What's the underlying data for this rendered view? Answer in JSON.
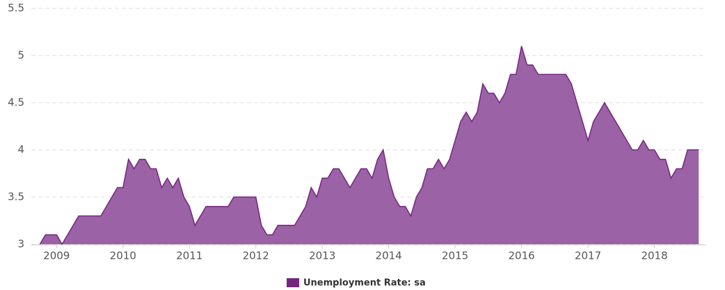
{
  "chart_data": {
    "type": "area",
    "x": [
      2008.75,
      2008.833,
      2008.917,
      2009,
      2009.083,
      2009.167,
      2009.25,
      2009.333,
      2009.417,
      2009.5,
      2009.583,
      2009.667,
      2009.75,
      2009.833,
      2009.917,
      2010,
      2010.083,
      2010.167,
      2010.25,
      2010.333,
      2010.417,
      2010.5,
      2010.583,
      2010.667,
      2010.75,
      2010.833,
      2010.917,
      2011,
      2011.083,
      2011.167,
      2011.25,
      2011.333,
      2011.417,
      2011.5,
      2011.583,
      2011.667,
      2011.75,
      2011.833,
      2011.917,
      2012,
      2012.083,
      2012.167,
      2012.25,
      2012.333,
      2012.417,
      2012.5,
      2012.583,
      2012.667,
      2012.75,
      2012.833,
      2012.917,
      2013,
      2013.083,
      2013.167,
      2013.25,
      2013.333,
      2013.417,
      2013.5,
      2013.583,
      2013.667,
      2013.75,
      2013.833,
      2013.917,
      2014,
      2014.083,
      2014.167,
      2014.25,
      2014.333,
      2014.417,
      2014.5,
      2014.583,
      2014.667,
      2014.75,
      2014.833,
      2014.917,
      2015,
      2015.083,
      2015.167,
      2015.25,
      2015.333,
      2015.417,
      2015.5,
      2015.583,
      2015.667,
      2015.75,
      2015.833,
      2015.917,
      2016,
      2016.083,
      2016.167,
      2016.25,
      2016.333,
      2016.417,
      2016.5,
      2016.583,
      2016.667,
      2016.75,
      2016.833,
      2016.917,
      2017,
      2017.083,
      2017.167,
      2017.25,
      2017.333,
      2017.417,
      2017.5,
      2017.583,
      2017.667,
      2017.75,
      2017.833,
      2017.917,
      2018,
      2018.083,
      2018.167,
      2018.25,
      2018.333,
      2018.417,
      2018.5,
      2018.583,
      2018.667
    ],
    "series": [
      {
        "name": "Unemployment Rate: sa",
        "color": "#9b62a6",
        "line_color": "#74267e",
        "values": [
          3.0,
          3.1,
          3.1,
          3.1,
          3.0,
          3.1,
          3.2,
          3.3,
          3.3,
          3.3,
          3.3,
          3.3,
          3.4,
          3.5,
          3.6,
          3.6,
          3.9,
          3.8,
          3.9,
          3.9,
          3.8,
          3.8,
          3.6,
          3.7,
          3.6,
          3.7,
          3.5,
          3.4,
          3.2,
          3.3,
          3.4,
          3.4,
          3.4,
          3.4,
          3.4,
          3.5,
          3.5,
          3.5,
          3.5,
          3.5,
          3.2,
          3.1,
          3.1,
          3.2,
          3.2,
          3.2,
          3.2,
          3.3,
          3.4,
          3.6,
          3.5,
          3.7,
          3.7,
          3.8,
          3.8,
          3.7,
          3.6,
          3.7,
          3.8,
          3.8,
          3.7,
          3.9,
          4.0,
          3.7,
          3.5,
          3.4,
          3.4,
          3.3,
          3.5,
          3.6,
          3.8,
          3.8,
          3.9,
          3.8,
          3.9,
          4.1,
          4.3,
          4.4,
          4.3,
          4.4,
          4.7,
          4.6,
          4.6,
          4.5,
          4.6,
          4.8,
          4.8,
          5.1,
          4.9,
          4.9,
          4.8,
          4.8,
          4.8,
          4.8,
          4.8,
          4.8,
          4.7,
          4.5,
          4.3,
          4.1,
          4.3,
          4.4,
          4.5,
          4.4,
          4.3,
          4.2,
          4.1,
          4.0,
          4.0,
          4.1,
          4.0,
          4.0,
          3.9,
          3.9,
          3.7,
          3.8,
          3.8,
          4.0,
          4.0,
          4.0
        ]
      }
    ],
    "xlim": [
      2008.62,
      2018.78
    ],
    "xticks": [
      2009,
      2010,
      2011,
      2012,
      2013,
      2014,
      2015,
      2016,
      2017,
      2018
    ],
    "ylim": [
      3,
      5.5
    ],
    "yticks": [
      3,
      3.5,
      4,
      4.5,
      5,
      5.5
    ],
    "grid": true,
    "legend": "bottom"
  }
}
